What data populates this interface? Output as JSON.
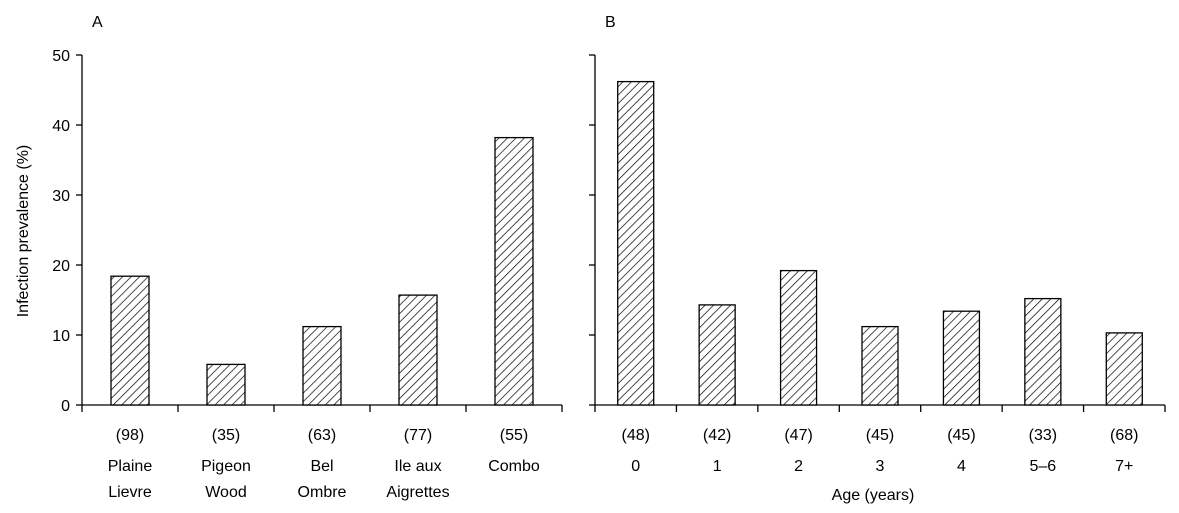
{
  "chart_data": [
    {
      "panel_label": "A",
      "type": "bar",
      "ylabel": "Infection prevalence (%)",
      "xlabel": "",
      "ylim": [
        0,
        50
      ],
      "yticks": [
        "0",
        "10",
        "20",
        "30",
        "40",
        "50"
      ],
      "categories": [
        [
          "Plaine",
          "Lievre"
        ],
        [
          "Pigeon",
          "Wood"
        ],
        [
          "Bel",
          "Ombre"
        ],
        [
          "Ile aux",
          "Aigrettes"
        ],
        [
          "Combo"
        ]
      ],
      "sample_sizes": [
        "(98)",
        "(35)",
        "(63)",
        "(77)",
        "(55)"
      ],
      "values": [
        18.4,
        5.8,
        11.2,
        15.7,
        38.2
      ]
    },
    {
      "panel_label": "B",
      "type": "bar",
      "ylabel": "",
      "xlabel": "Age (years)",
      "ylim": [
        0,
        50
      ],
      "categories": [
        [
          "0"
        ],
        [
          "1"
        ],
        [
          "2"
        ],
        [
          "3"
        ],
        [
          "4"
        ],
        [
          "5–6"
        ],
        [
          "7+"
        ]
      ],
      "sample_sizes": [
        "(48)",
        "(42)",
        "(47)",
        "(45)",
        "(45)",
        "(33)",
        "(68)"
      ],
      "values": [
        46.2,
        14.3,
        19.2,
        11.2,
        13.4,
        15.2,
        10.3
      ]
    }
  ],
  "style": {
    "bar_fill": "hatched",
    "bar_edge_color": "#000000"
  }
}
